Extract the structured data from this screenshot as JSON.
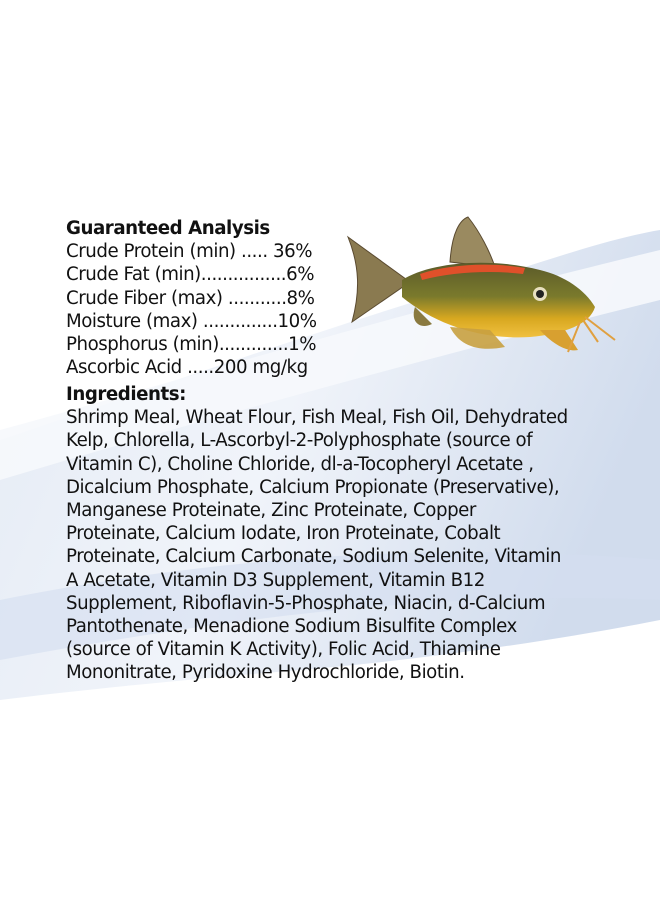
{
  "analysis": {
    "title": "Guaranteed Analysis",
    "rows": [
      "Crude Protein (min) ..... 36%",
      "Crude Fat (min)................6%",
      "Crude Fiber (max) ...........8%",
      "Moisture (max) ..............10%",
      "Phosphorus (min).............1%",
      "Ascorbic Acid .....200 mg/kg"
    ]
  },
  "ingredients": {
    "title": "Ingredients:",
    "lines": [
      "Shrimp Meal, Wheat Flour, Fish Meal, Fish Oil, Dehydrated",
      "Kelp, Chlorella, L-Ascorbyl-2-Polyphosphate (source of",
      "Vitamin C), Choline Chloride, dl-a-Tocopheryl Acetate ,",
      "Dicalcium Phosphate, Calcium Propionate (Preservative),",
      "Manganese Proteinate, Zinc Proteinate, Copper",
      "Proteinate, Calcium Iodate, Iron Proteinate, Cobalt",
      "Proteinate, Calcium Carbonate, Sodium Selenite, Vitamin",
      "A Acetate, Vitamin D3 Supplement, Vitamin B12",
      "Supplement, Riboflavin-5-Phosphate, Niacin, d-Calcium",
      "Pantothenate, Menadione Sodium Bisulfite Complex",
      "(source of Vitamin K Activity), Folic Acid, Thiamine",
      "Mononitrate, Pyridoxine Hydrochloride, Biotin."
    ]
  },
  "image": {
    "icon": "catfish-illustration",
    "accent": "#e0502a"
  }
}
